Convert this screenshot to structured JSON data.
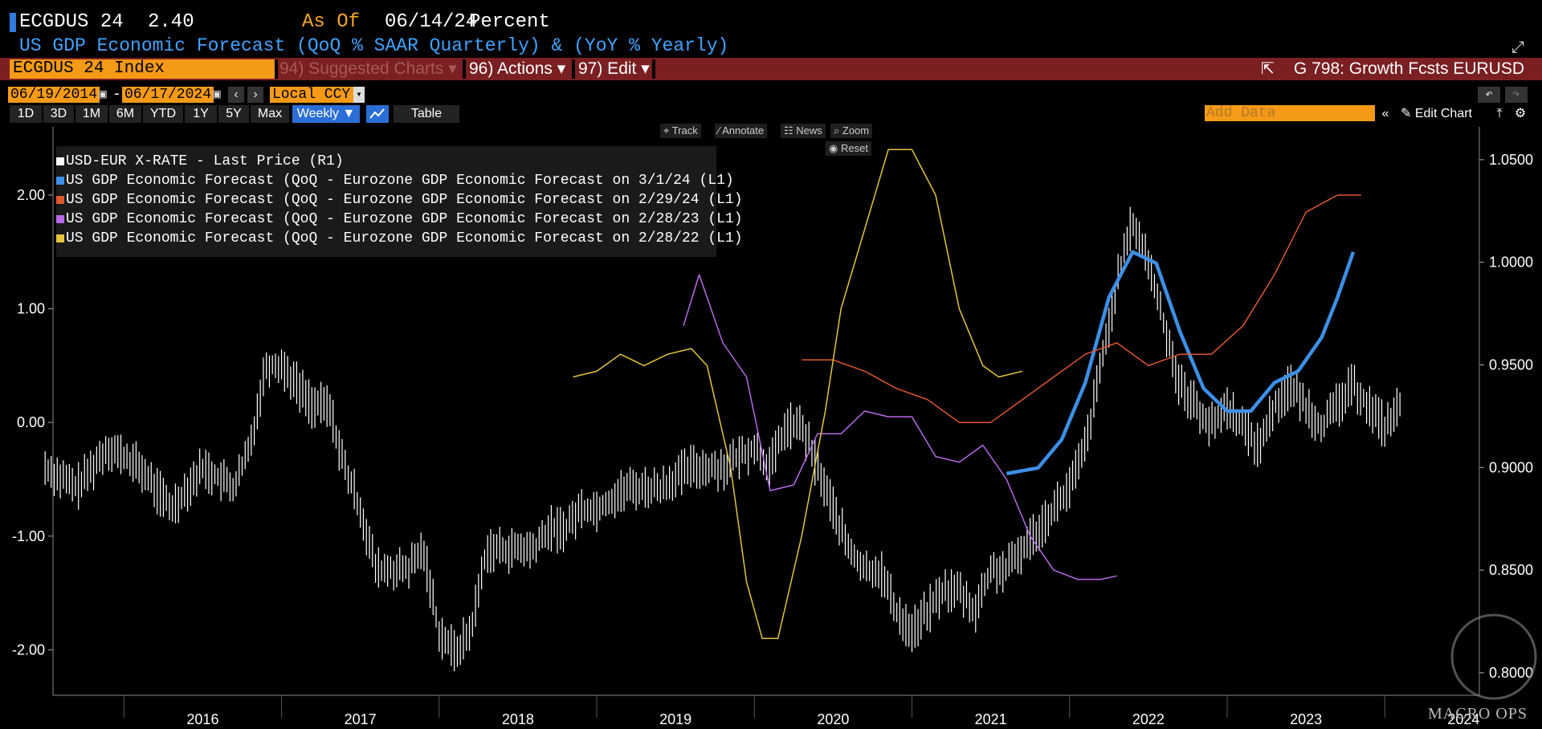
{
  "header": {
    "ticker": "ECGDUS 24",
    "last_value": "2.40",
    "as_of_label": "As Of",
    "as_of_date": "06/14/24",
    "units": "Percent",
    "description": "US GDP Economic Forecast (QoQ % SAAR Quarterly) & (YoY % Yearly)"
  },
  "menu": {
    "index": "ECGDUS 24 Index",
    "suggested": "94) Suggested Charts ▾",
    "actions": "96) Actions ▾",
    "edit": "97) Edit ▾",
    "g798": "G 798: Growth Fcsts EURUSD"
  },
  "dates": {
    "start": "06/19/2014",
    "end": "06/17/2024",
    "separator": "-",
    "currency": "Local CCY"
  },
  "ranges": [
    "1D",
    "3D",
    "1M",
    "6M",
    "YTD",
    "1Y",
    "5Y",
    "Max"
  ],
  "frequency": "Weekly ▼",
  "table_label": "Table",
  "add_data_placeholder": "Add Data",
  "edit_chart_label": "Edit Chart",
  "tools": {
    "track": "Track",
    "annotate": "Annotate",
    "news": "News",
    "zoom": "Zoom",
    "reset": "Reset"
  },
  "watermark": "MACRO OPS",
  "colors": {
    "white_series": "#ffffff",
    "blue_series": "#3d8fe6",
    "orange_series": "#e2572b",
    "purple_series": "#b86ae8",
    "yellow_series": "#e4c43a",
    "orange_accent": "#f59a17",
    "menu_bar": "#7a1f22"
  },
  "chart_data": {
    "type": "line",
    "x_axis_labels": [
      "2016",
      "2017",
      "2018",
      "2019",
      "2020",
      "2021",
      "2022",
      "2023",
      "2024"
    ],
    "left_axis": {
      "ticks": [
        "2.00",
        "1.00",
        "0.00",
        "-1.00",
        "-2.00"
      ],
      "range": [
        -2.4,
        2.6
      ]
    },
    "right_axis": {
      "ticks": [
        "1.0500",
        "1.0000",
        "0.9500",
        "0.9000",
        "0.8500",
        "0.8000"
      ],
      "range": [
        0.789,
        1.066
      ]
    },
    "grid": false,
    "legend_position": "top-left",
    "series": [
      {
        "name": "USD-EUR X-RATE - Last Price (R1)",
        "axis": "right",
        "color": "white",
        "style": "ohlc-bars",
        "points": [
          [
            2015.5,
            0.9
          ],
          [
            2015.7,
            0.89
          ],
          [
            2015.9,
            0.91
          ],
          [
            2016.1,
            0.9
          ],
          [
            2016.3,
            0.88
          ],
          [
            2016.5,
            0.9
          ],
          [
            2016.7,
            0.89
          ],
          [
            2016.8,
            0.91
          ],
          [
            2016.9,
            0.95
          ],
          [
            2017.0,
            0.95
          ],
          [
            2017.1,
            0.94
          ],
          [
            2017.2,
            0.93
          ],
          [
            2017.3,
            0.93
          ],
          [
            2017.4,
            0.9
          ],
          [
            2017.5,
            0.88
          ],
          [
            2017.6,
            0.85
          ],
          [
            2017.7,
            0.85
          ],
          [
            2017.8,
            0.85
          ],
          [
            2017.9,
            0.86
          ],
          [
            2018.0,
            0.82
          ],
          [
            2018.1,
            0.81
          ],
          [
            2018.2,
            0.82
          ],
          [
            2018.3,
            0.86
          ],
          [
            2018.4,
            0.86
          ],
          [
            2018.5,
            0.86
          ],
          [
            2018.6,
            0.86
          ],
          [
            2018.7,
            0.87
          ],
          [
            2018.8,
            0.87
          ],
          [
            2018.9,
            0.88
          ],
          [
            2019.0,
            0.88
          ],
          [
            2019.2,
            0.89
          ],
          [
            2019.4,
            0.89
          ],
          [
            2019.6,
            0.9
          ],
          [
            2019.8,
            0.9
          ],
          [
            2020.0,
            0.91
          ],
          [
            2020.1,
            0.9
          ],
          [
            2020.2,
            0.92
          ],
          [
            2020.3,
            0.92
          ],
          [
            2020.4,
            0.9
          ],
          [
            2020.5,
            0.88
          ],
          [
            2020.6,
            0.86
          ],
          [
            2020.7,
            0.85
          ],
          [
            2020.8,
            0.85
          ],
          [
            2020.9,
            0.83
          ],
          [
            2021.0,
            0.82
          ],
          [
            2021.1,
            0.83
          ],
          [
            2021.2,
            0.84
          ],
          [
            2021.3,
            0.84
          ],
          [
            2021.4,
            0.83
          ],
          [
            2021.5,
            0.85
          ],
          [
            2021.6,
            0.85
          ],
          [
            2021.7,
            0.86
          ],
          [
            2021.8,
            0.87
          ],
          [
            2021.9,
            0.88
          ],
          [
            2022.0,
            0.89
          ],
          [
            2022.1,
            0.91
          ],
          [
            2022.2,
            0.95
          ],
          [
            2022.3,
            0.99
          ],
          [
            2022.4,
            1.02
          ],
          [
            2022.5,
            1.0
          ],
          [
            2022.6,
            0.97
          ],
          [
            2022.7,
            0.94
          ],
          [
            2022.8,
            0.93
          ],
          [
            2022.9,
            0.92
          ],
          [
            2023.0,
            0.93
          ],
          [
            2023.1,
            0.92
          ],
          [
            2023.2,
            0.91
          ],
          [
            2023.3,
            0.93
          ],
          [
            2023.4,
            0.94
          ],
          [
            2023.5,
            0.93
          ],
          [
            2023.6,
            0.92
          ],
          [
            2023.7,
            0.93
          ],
          [
            2023.8,
            0.94
          ],
          [
            2023.9,
            0.93
          ],
          [
            2024.0,
            0.92
          ],
          [
            2024.1,
            0.93
          ]
        ]
      },
      {
        "name": "US GDP Economic Forecast (QoQ - Eurozone GDP Economic Forecast on 3/1/24 (L1)",
        "axis": "left",
        "color": "blue",
        "points": [
          [
            2021.6,
            -0.45
          ],
          [
            2021.8,
            -0.4
          ],
          [
            2021.95,
            -0.15
          ],
          [
            2022.1,
            0.35
          ],
          [
            2022.25,
            1.1
          ],
          [
            2022.4,
            1.5
          ],
          [
            2022.55,
            1.4
          ],
          [
            2022.7,
            0.8
          ],
          [
            2022.85,
            0.3
          ],
          [
            2023.0,
            0.1
          ],
          [
            2023.15,
            0.1
          ],
          [
            2023.3,
            0.35
          ],
          [
            2023.45,
            0.45
          ],
          [
            2023.6,
            0.75
          ],
          [
            2023.7,
            1.1
          ],
          [
            2023.8,
            1.5
          ]
        ]
      },
      {
        "name": "US GDP Economic Forecast (QoQ - Eurozone GDP Economic Forecast on 2/29/24 (L1)",
        "axis": "left",
        "color": "orange",
        "points": [
          [
            2020.3,
            0.55
          ],
          [
            2020.5,
            0.55
          ],
          [
            2020.7,
            0.45
          ],
          [
            2020.9,
            0.3
          ],
          [
            2021.1,
            0.2
          ],
          [
            2021.3,
            0.0
          ],
          [
            2021.5,
            0.0
          ],
          [
            2021.7,
            0.2
          ],
          [
            2021.9,
            0.4
          ],
          [
            2022.1,
            0.6
          ],
          [
            2022.3,
            0.7
          ],
          [
            2022.5,
            0.5
          ],
          [
            2022.7,
            0.6
          ],
          [
            2022.9,
            0.6
          ],
          [
            2023.1,
            0.85
          ],
          [
            2023.3,
            1.3
          ],
          [
            2023.5,
            1.85
          ],
          [
            2023.7,
            2.0
          ],
          [
            2023.85,
            2.0
          ]
        ]
      },
      {
        "name": "US GDP Economic Forecast (QoQ - Eurozone GDP Economic Forecast on 2/28/23 (L1)",
        "axis": "left",
        "color": "purple",
        "points": [
          [
            2019.55,
            0.85
          ],
          [
            2019.65,
            1.3
          ],
          [
            2019.8,
            0.7
          ],
          [
            2019.95,
            0.4
          ],
          [
            2020.1,
            -0.6
          ],
          [
            2020.25,
            -0.55
          ],
          [
            2020.4,
            -0.1
          ],
          [
            2020.55,
            -0.1
          ],
          [
            2020.7,
            0.1
          ],
          [
            2020.85,
            0.05
          ],
          [
            2021.0,
            0.05
          ],
          [
            2021.15,
            -0.3
          ],
          [
            2021.3,
            -0.35
          ],
          [
            2021.45,
            -0.2
          ],
          [
            2021.6,
            -0.5
          ],
          [
            2021.75,
            -1.0
          ],
          [
            2021.9,
            -1.3
          ],
          [
            2022.05,
            -1.38
          ],
          [
            2022.2,
            -1.38
          ],
          [
            2022.3,
            -1.35
          ]
        ]
      },
      {
        "name": "US GDP Economic Forecast (QoQ - Eurozone GDP Economic Forecast on 2/28/22 (L1)",
        "axis": "left",
        "color": "yellow",
        "points": [
          [
            2018.85,
            0.4
          ],
          [
            2019.0,
            0.45
          ],
          [
            2019.15,
            0.6
          ],
          [
            2019.3,
            0.5
          ],
          [
            2019.45,
            0.6
          ],
          [
            2019.6,
            0.65
          ],
          [
            2019.7,
            0.5
          ],
          [
            2019.85,
            -0.4
          ],
          [
            2019.95,
            -1.4
          ],
          [
            2020.05,
            -1.9
          ],
          [
            2020.15,
            -1.9
          ],
          [
            2020.3,
            -1.0
          ],
          [
            2020.45,
            0.1
          ],
          [
            2020.55,
            1.0
          ],
          [
            2020.7,
            1.7
          ],
          [
            2020.85,
            2.4
          ],
          [
            2021.0,
            2.4
          ],
          [
            2021.15,
            2.0
          ],
          [
            2021.3,
            1.0
          ],
          [
            2021.45,
            0.5
          ],
          [
            2021.55,
            0.4
          ],
          [
            2021.7,
            0.45
          ]
        ]
      }
    ]
  }
}
